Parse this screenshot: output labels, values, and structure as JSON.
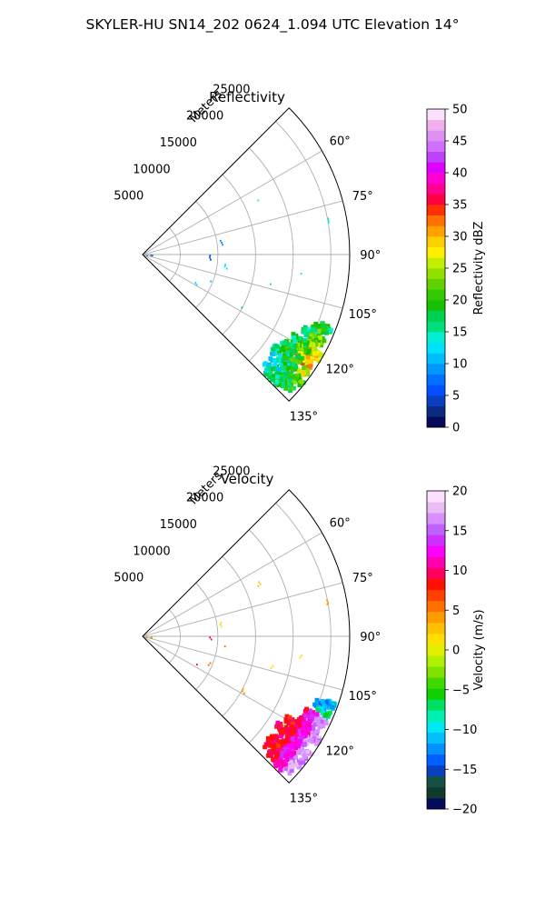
{
  "figure": {
    "title": "SKYLER-HU  SN14_202  0624_1.094 UTC Elevation 14°"
  },
  "chart_data": [
    {
      "type": "polar-sector",
      "title": "Reflectivity",
      "radial_label": "Meters",
      "radial_ticks": [
        5000,
        10000,
        15000,
        20000,
        25000
      ],
      "radial_tick_labels": [
        "5000",
        "10000",
        "15000",
        "20000",
        "25000"
      ],
      "angular_ticks": [
        60,
        75,
        90,
        105,
        120,
        135
      ],
      "angular_tick_labels": [
        "60°",
        "75°",
        "90°",
        "105°",
        "120°",
        "135°"
      ],
      "azimuth_range": [
        45,
        135
      ],
      "range_max": 27500,
      "grid": true,
      "colorbar": {
        "label": "Reflectivity dBZ",
        "range": [
          0,
          50
        ],
        "ticks": [
          0,
          5,
          10,
          15,
          20,
          25,
          30,
          35,
          40,
          45,
          50
        ],
        "tick_labels": [
          "0",
          "5",
          "10",
          "15",
          "20",
          "25",
          "30",
          "35",
          "40",
          "45",
          "50"
        ],
        "colors": [
          "#050a5a",
          "#0a2a80",
          "#0a3fc0",
          "#0050ff",
          "#0070ff",
          "#0095ff",
          "#00bfff",
          "#00e0ff",
          "#00f0d0",
          "#00e07a",
          "#00d050",
          "#17c000",
          "#33c800",
          "#60d000",
          "#90e000",
          "#c0f000",
          "#fff000",
          "#ffd000",
          "#ffa000",
          "#ff7000",
          "#ff3000",
          "#ff0040",
          "#ff0090",
          "#ff00d0",
          "#e000ff",
          "#c040ff",
          "#d070ff",
          "#e090f0",
          "#f0b0f0",
          "#fce0fc"
        ]
      },
      "echoes": [
        {
          "az": 112,
          "r": 26500,
          "dbz": 18
        },
        {
          "az": 113,
          "r": 25500,
          "dbz": 20
        },
        {
          "az": 115,
          "r": 24800,
          "dbz": 16
        },
        {
          "az": 116,
          "r": 26200,
          "dbz": 22
        },
        {
          "az": 118,
          "r": 25600,
          "dbz": 24
        },
        {
          "az": 119,
          "r": 24200,
          "dbz": 18
        },
        {
          "az": 120,
          "r": 26800,
          "dbz": 28
        },
        {
          "az": 121,
          "r": 25200,
          "dbz": 22
        },
        {
          "az": 122,
          "r": 23600,
          "dbz": 17
        },
        {
          "az": 123,
          "r": 26300,
          "dbz": 30
        },
        {
          "az": 124,
          "r": 24700,
          "dbz": 20
        },
        {
          "az": 125,
          "r": 23300,
          "dbz": 16
        },
        {
          "az": 126,
          "r": 26500,
          "dbz": 26
        },
        {
          "az": 127,
          "r": 25000,
          "dbz": 19
        },
        {
          "az": 128,
          "r": 23800,
          "dbz": 15
        },
        {
          "az": 129,
          "r": 26900,
          "dbz": 21
        },
        {
          "az": 130,
          "r": 25400,
          "dbz": 17
        },
        {
          "az": 131,
          "r": 24300,
          "dbz": 14
        },
        {
          "az": 132,
          "r": 26200,
          "dbz": 19
        },
        {
          "az": 133,
          "r": 25000,
          "dbz": 16
        }
      ],
      "speckles": [
        {
          "az": 65,
          "r": 17000,
          "dbz": 14
        },
        {
          "az": 80,
          "r": 10500,
          "dbz": 9
        },
        {
          "az": 79,
          "r": 25000,
          "dbz": 14
        },
        {
          "az": 91,
          "r": 9000,
          "dbz": 5
        },
        {
          "az": 97,
          "r": 11000,
          "dbz": 12
        },
        {
          "az": 103,
          "r": 17500,
          "dbz": 15
        },
        {
          "az": 97,
          "r": 21000,
          "dbz": 12
        },
        {
          "az": 112,
          "r": 9500,
          "dbz": 11
        },
        {
          "az": 118,
          "r": 8000,
          "dbz": 13
        },
        {
          "az": 118,
          "r": 15000,
          "dbz": 17
        }
      ]
    },
    {
      "type": "polar-sector",
      "title": "Velocity",
      "radial_label": "Meters",
      "radial_ticks": [
        5000,
        10000,
        15000,
        20000,
        25000
      ],
      "radial_tick_labels": [
        "5000",
        "10000",
        "15000",
        "20000",
        "25000"
      ],
      "angular_ticks": [
        60,
        75,
        90,
        105,
        120,
        135
      ],
      "angular_tick_labels": [
        "60°",
        "75°",
        "90°",
        "105°",
        "120°",
        "135°"
      ],
      "azimuth_range": [
        45,
        135
      ],
      "range_max": 27500,
      "grid": true,
      "colorbar": {
        "label": "Velocity (m/s)",
        "range": [
          -20,
          20
        ],
        "ticks": [
          -20,
          -15,
          -10,
          -5,
          0,
          5,
          10,
          15,
          20
        ],
        "tick_labels": [
          "−20",
          "−15",
          "−10",
          "−5",
          "0",
          "5",
          "10",
          "15",
          "20"
        ],
        "colors": [
          "#050a5a",
          "#103a30",
          "#155040",
          "#0a40c0",
          "#0060ff",
          "#0090ff",
          "#00c0ff",
          "#00e8f0",
          "#00f0b0",
          "#00e060",
          "#10d000",
          "#40d800",
          "#80e000",
          "#b0f000",
          "#e0f000",
          "#ffe000",
          "#ffc000",
          "#ff9a00",
          "#ff7000",
          "#ff4000",
          "#ff1000",
          "#ff0060",
          "#ff00b0",
          "#ff00ff",
          "#d030ff",
          "#c060ff",
          "#d890ff",
          "#ecbcf8",
          "#fce0fc"
        ]
      },
      "echoes": [
        {
          "az": 110,
          "r": 26500,
          "v": -10
        },
        {
          "az": 111,
          "r": 25500,
          "v": -12
        },
        {
          "az": 113,
          "r": 26300,
          "v": -8
        },
        {
          "az": 115,
          "r": 25000,
          "v": 16
        },
        {
          "az": 116,
          "r": 26400,
          "v": 15
        },
        {
          "az": 118,
          "r": 24600,
          "v": 17
        },
        {
          "az": 119,
          "r": 25900,
          "v": 13
        },
        {
          "az": 120,
          "r": 23500,
          "v": 16
        },
        {
          "az": 121,
          "r": 26700,
          "v": 11
        },
        {
          "az": 122,
          "r": 24800,
          "v": 12
        },
        {
          "az": 123,
          "r": 23200,
          "v": 14
        },
        {
          "az": 124,
          "r": 26000,
          "v": 10
        },
        {
          "az": 125,
          "r": 24400,
          "v": 11
        },
        {
          "az": 126,
          "r": 26700,
          "v": 8
        },
        {
          "az": 127,
          "r": 25100,
          "v": 10
        },
        {
          "az": 128,
          "r": 23800,
          "v": 12
        },
        {
          "az": 129,
          "r": 26600,
          "v": 7
        },
        {
          "az": 130,
          "r": 25300,
          "v": 9
        },
        {
          "az": 131,
          "r": 24300,
          "v": 11
        },
        {
          "az": 132,
          "r": 26100,
          "v": 6
        },
        {
          "az": 133,
          "r": 25100,
          "v": 8
        }
      ],
      "speckles": [
        {
          "az": 65,
          "r": 17000,
          "v": 3
        },
        {
          "az": 79,
          "r": 25000,
          "v": 4
        },
        {
          "az": 80,
          "r": 10500,
          "v": 2
        },
        {
          "az": 91,
          "r": 9000,
          "v": 10
        },
        {
          "az": 97,
          "r": 11000,
          "v": 5
        },
        {
          "az": 103,
          "r": 17500,
          "v": 1
        },
        {
          "az": 97,
          "r": 21000,
          "v": 2
        },
        {
          "az": 112,
          "r": 9500,
          "v": 6
        },
        {
          "az": 118,
          "r": 8000,
          "v": 10
        },
        {
          "az": 118,
          "r": 15000,
          "v": 4
        }
      ]
    }
  ]
}
